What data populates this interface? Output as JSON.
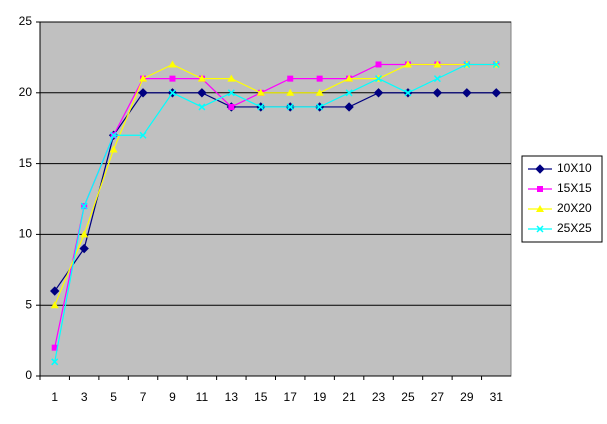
{
  "chart_data": {
    "type": "line",
    "categories": [
      "1",
      "3",
      "5",
      "7",
      "9",
      "11",
      "13",
      "15",
      "17",
      "19",
      "21",
      "23",
      "25",
      "27",
      "29",
      "31"
    ],
    "series": [
      {
        "name": "10X10",
        "color": "#000080",
        "marker": "diamond",
        "values": [
          6,
          9,
          17,
          20,
          20,
          20,
          19,
          19,
          19,
          19,
          19,
          20,
          20,
          20,
          20,
          20
        ]
      },
      {
        "name": "15X15",
        "color": "#ff00ff",
        "marker": "square",
        "values": [
          2,
          12,
          17,
          21,
          21,
          21,
          19,
          20,
          21,
          21,
          21,
          22,
          22,
          22,
          22,
          22
        ]
      },
      {
        "name": "20X20",
        "color": "#ffff00",
        "marker": "triangle",
        "values": [
          5,
          10,
          16,
          21,
          22,
          21,
          21,
          20,
          20,
          20,
          21,
          21,
          22,
          22,
          22,
          22
        ]
      },
      {
        "name": "25X25",
        "color": "#00ffff",
        "marker": "x",
        "values": [
          1,
          12,
          17,
          17,
          20,
          19,
          20,
          19,
          19,
          19,
          20,
          21,
          20,
          21,
          22,
          22
        ]
      }
    ],
    "ylim": [
      0,
      25
    ],
    "yticks": [
      0,
      5,
      10,
      15,
      20,
      25
    ],
    "grid": true,
    "legend": "right"
  }
}
